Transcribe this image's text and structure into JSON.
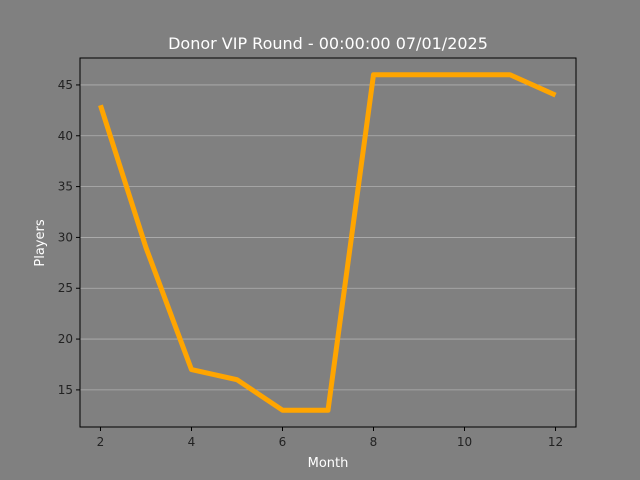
{
  "chart_data": {
    "type": "line",
    "title": "Donor VIP Round - 00:00:00 07/01/2025",
    "xlabel": "Month",
    "ylabel": "Players",
    "x": [
      2,
      3,
      4,
      5,
      6,
      7,
      8,
      9,
      10,
      11,
      12
    ],
    "series": [
      {
        "values": [
          43,
          29,
          17,
          16,
          13,
          13,
          46,
          46,
          46,
          46,
          44
        ]
      }
    ],
    "xlim": [
      1.55,
      12.45
    ],
    "ylim": [
      11.35,
      47.65
    ],
    "xticks": [
      2,
      4,
      6,
      8,
      10,
      12
    ],
    "yticks": [
      15,
      20,
      25,
      30,
      35,
      40,
      45
    ],
    "grid": "horizontal",
    "colors": {
      "background": "#808080",
      "line": "#ffa500",
      "grid": "#b0b0b0",
      "text": "#ffffff",
      "ticks": "#222222"
    }
  }
}
